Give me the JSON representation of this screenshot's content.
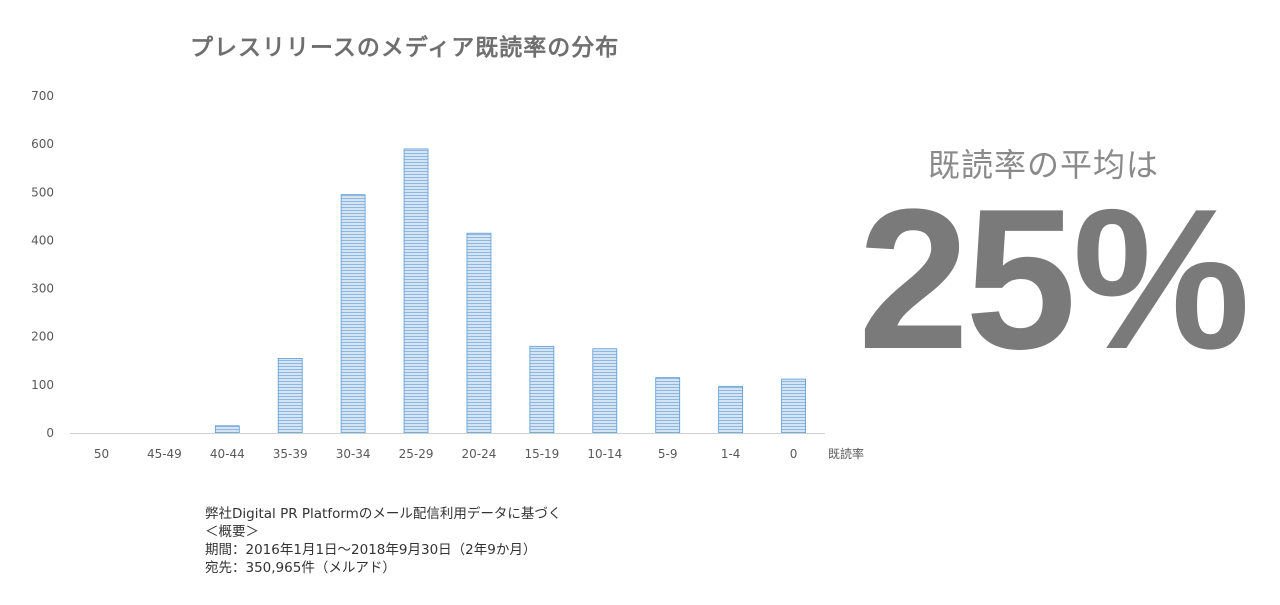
{
  "title": "プレスリリースのメディア既読率の分布",
  "chart_data": {
    "type": "bar",
    "categories": [
      "50",
      "45-49",
      "40-44",
      "35-39",
      "30-34",
      "25-29",
      "20-24",
      "15-19",
      "10-14",
      "5-9",
      "1-4",
      "0"
    ],
    "values": [
      0,
      0,
      15,
      155,
      495,
      590,
      415,
      180,
      175,
      115,
      97,
      112
    ],
    "xlabel": "既読率",
    "ylabel": "",
    "ylim": [
      0,
      700
    ],
    "yticks": [
      "0",
      "100",
      "200",
      "300",
      "400",
      "500",
      "600",
      "700"
    ],
    "grid": false,
    "bar_color": "#9dc3e6",
    "bar_edge_color": "#5b9bd5"
  },
  "average": {
    "label": "既読率の平均は",
    "value": "25%"
  },
  "notes": [
    "弊社Digital PR Platformのメール配信利用データに基づく",
    "＜概要＞",
    "期間：2016年1月1日～2018年9月30日（2年9か月）",
    "宛先：350,965件（メルアド）"
  ]
}
